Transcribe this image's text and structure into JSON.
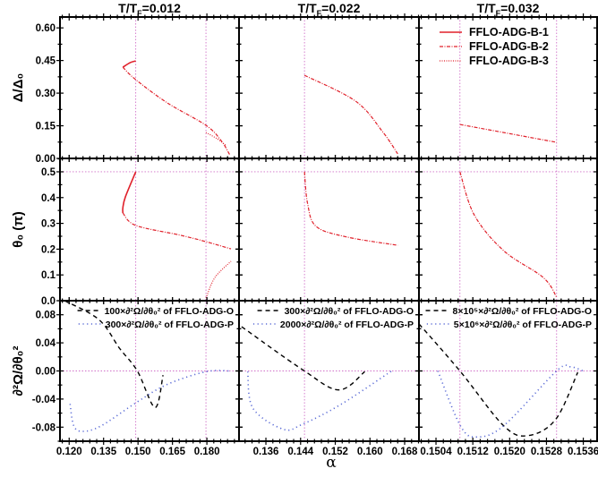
{
  "chart_data": {
    "type": "line",
    "xlabel": "α",
    "columns": [
      {
        "title": {
          "main": "T/T",
          "sub": "F",
          "rest": "=0.012"
        },
        "xlim": [
          0.116,
          0.194
        ],
        "xticks": [
          0.12,
          0.135,
          0.15,
          0.165,
          0.18
        ],
        "xtick_labels": [
          "0.120",
          "0.135",
          "0.150",
          "0.165",
          "0.180"
        ],
        "vlines": [
          0.149,
          0.1796
        ]
      },
      {
        "title": {
          "main": "T/T",
          "sub": "F",
          "rest": "=0.022"
        },
        "xlim": [
          0.1298,
          0.1713
        ],
        "xticks": [
          0.136,
          0.144,
          0.152,
          0.16,
          0.168
        ],
        "xtick_labels": [
          "0.136",
          "0.144",
          "0.152",
          "0.160",
          "0.168"
        ],
        "vlines": [
          0.1449
        ]
      },
      {
        "title": {
          "main": "T/T",
          "sub": "F",
          "rest": "=0.032"
        },
        "xlim": [
          0.15003,
          0.1539
        ],
        "xticks": [
          0.1504,
          0.1512,
          0.152,
          0.1528,
          0.1536
        ],
        "xtick_labels": [
          "0.1504",
          "0.1512",
          "0.1520",
          "0.1528",
          "0.1536"
        ],
        "vlines": [
          0.15092,
          0.15302
        ]
      }
    ],
    "rows": [
      {
        "ylabel": "Δ/Δ₀",
        "ylim": [
          0,
          0.65
        ],
        "yticks": [
          0,
          0.15,
          0.3,
          0.45,
          0.6
        ],
        "ytick_labels": [
          "0.00",
          "0.15",
          "0.30",
          "0.45",
          "0.60"
        ],
        "hlines": []
      },
      {
        "ylabel": "θ₀ (π)",
        "ylim": [
          0,
          0.552
        ],
        "yticks": [
          0,
          0.1,
          0.2,
          0.3,
          0.4,
          0.5
        ],
        "ytick_labels": [
          "0.0",
          "0.1",
          "0.2",
          "0.3",
          "0.4",
          "0.5"
        ],
        "hlines": [
          0.5
        ]
      },
      {
        "ylabel": "∂²Ω/∂θ₀²",
        "ylim": [
          -0.1,
          0.1
        ],
        "yticks": [
          -0.08,
          -0.04,
          0,
          0.04,
          0.08
        ],
        "ytick_labels": [
          "-0.08",
          "-0.04",
          "0.00",
          "0.04",
          "0.08"
        ],
        "hlines": [
          0
        ]
      }
    ],
    "legend_top": {
      "placement": "top-right",
      "entries": [
        {
          "name": "FFLO-ADG-B-1",
          "style": "solid"
        },
        {
          "name": "FFLO-ADG-B-2",
          "style": "dashdot"
        },
        {
          "name": "FFLO-ADG-B-3",
          "style": "dotted"
        }
      ]
    },
    "legend_bottom": [
      {
        "entries": [
          {
            "name": "100×∂²Ω/∂θ₀² of FFLO-ADG-O",
            "style": "dashed"
          },
          {
            "name": "300×∂²Ω/∂θ₀² of FFLO-ADG-P",
            "style": "bluedot"
          }
        ]
      },
      {
        "entries": [
          {
            "name": "300×∂²Ω/∂θ₀²  of FFLO-ADG-O",
            "style": "dashed"
          },
          {
            "name": "2000×∂²Ω/∂θ₀² of FFLO-ADG-P",
            "style": "bluedot"
          }
        ]
      },
      {
        "entries": [
          {
            "name": "8×10⁵×∂²Ω/∂θ₀² of FFLO-ADG-O",
            "style": "dashed"
          },
          {
            "name": "5×10⁶×∂²Ω/∂θ₀² of FFLO-ADG-P",
            "style": "bluedot"
          }
        ]
      }
    ],
    "panels": [
      {
        "row": 0,
        "col": 0,
        "series": [
          {
            "style": "solid",
            "x": [
              0.149,
              0.1465,
              0.1434
            ],
            "y": [
              0.448,
              0.44,
              0.419
            ]
          },
          {
            "style": "dashdot",
            "x": [
              0.1434,
              0.149,
              0.1628,
              0.1796,
              0.1862,
              0.19
            ],
            "y": [
              0.419,
              0.362,
              0.255,
              0.152,
              0.082,
              0.016
            ]
          },
          {
            "style": "dotted",
            "x": [
              0.1796,
              0.1845,
              0.1886
            ],
            "y": [
              0.119,
              0.09,
              0.057
            ]
          }
        ]
      },
      {
        "row": 0,
        "col": 1,
        "series": [
          {
            "style": "dashdot",
            "x": [
              0.1449,
              0.1567,
              0.1629,
              0.1664
            ],
            "y": [
              0.382,
              0.263,
              0.123,
              0.021
            ]
          }
        ]
      },
      {
        "row": 0,
        "col": 2,
        "series": [
          {
            "style": "dashdot",
            "x": [
              0.15092,
              0.15302
            ],
            "y": [
              0.156,
              0.074
            ]
          }
        ]
      },
      {
        "row": 1,
        "col": 0,
        "series": [
          {
            "style": "solid",
            "x": [
              0.149,
              0.1445,
              0.1434,
              0.1434
            ],
            "y": [
              0.5,
              0.403,
              0.361,
              0.34
            ]
          },
          {
            "style": "dashdot",
            "x": [
              0.1434,
              0.149,
              0.168,
              0.1796,
              0.1905
            ],
            "y": [
              0.34,
              0.292,
              0.255,
              0.229,
              0.201
            ]
          },
          {
            "style": "dotted",
            "x": [
              0.1796,
              0.1835,
              0.1905
            ],
            "y": [
              0.01,
              0.09,
              0.153
            ]
          }
        ]
      },
      {
        "row": 1,
        "col": 1,
        "series": [
          {
            "style": "dashdot",
            "x": [
              0.1449,
              0.1456,
              0.1476,
              0.1547,
              0.1664
            ],
            "y": [
              0.5,
              0.378,
              0.288,
              0.247,
              0.215
            ]
          }
        ]
      },
      {
        "row": 1,
        "col": 2,
        "series": [
          {
            "style": "dashdot",
            "x": [
              0.15092,
              0.15123,
              0.15187,
              0.15273,
              0.15302
            ],
            "y": [
              0.5,
              0.333,
              0.194,
              0.09,
              0.014
            ]
          }
        ]
      },
      {
        "row": 2,
        "col": 0,
        "series": [
          {
            "style": "dashed",
            "x": [
              0.118,
              0.133,
              0.142,
              0.1497,
              0.1574,
              0.1609
            ],
            "y": [
              0.1,
              0.073,
              0.032,
              0,
              -0.052,
              -0.006
            ]
          },
          {
            "style": "bluedot",
            "x": [
              0.1204,
              0.122,
              0.1258,
              0.134,
              0.1497,
              0.1628,
              0.1796,
              0.19
            ],
            "y": [
              -0.047,
              -0.078,
              -0.086,
              -0.078,
              -0.044,
              -0.019,
              -0.001,
              0
            ]
          }
        ]
      },
      {
        "row": 2,
        "col": 1,
        "series": [
          {
            "style": "dashed",
            "x": [
              0.1304,
              0.1444,
              0.1528,
              0.1588
            ],
            "y": [
              0.063,
              0.002,
              -0.027,
              -0.001
            ]
          },
          {
            "style": "bluedot",
            "x": [
              0.1318,
              0.133,
              0.14,
              0.1444,
              0.1532,
              0.165
            ],
            "y": [
              -0.001,
              -0.053,
              -0.083,
              -0.076,
              -0.048,
              0
            ]
          }
        ]
      },
      {
        "row": 2,
        "col": 2,
        "series": [
          {
            "style": "dashed",
            "x": [
              0.15003,
              0.15092,
              0.15187,
              0.1524,
              0.153,
              0.15348
            ],
            "y": [
              0.067,
              0,
              -0.078,
              -0.092,
              -0.069,
              -0.002
            ]
          },
          {
            "style": "bluedot",
            "x": [
              0.15044,
              0.15093,
              0.15128,
              0.15187,
              0.15302,
              0.15331,
              0.1536
            ],
            "y": [
              0,
              -0.078,
              -0.094,
              -0.078,
              0,
              0.006,
              0
            ]
          }
        ]
      }
    ],
    "colors": {
      "B": "#e0202a",
      "O": "#000000",
      "P": "#5a6bd6",
      "reference": "#d070c8"
    }
  }
}
